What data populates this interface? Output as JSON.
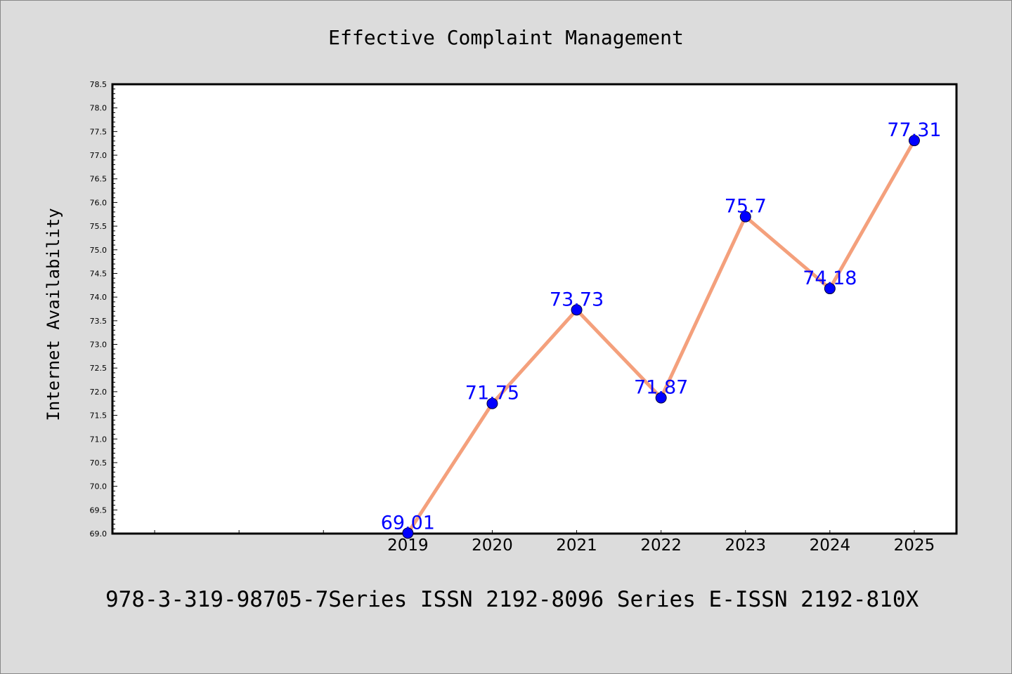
{
  "chart_data": {
    "type": "line",
    "title": "Effective Complaint Management",
    "xlabel": "",
    "ylabel": "Internet Availability",
    "categories": [
      "2019",
      "2020",
      "2021",
      "2022",
      "2023",
      "2024",
      "2025"
    ],
    "series": [
      {
        "values": [
          69.01,
          71.75,
          73.73,
          71.87,
          75.7,
          74.18,
          77.31
        ]
      }
    ],
    "data_labels": [
      "69.01",
      "71.75",
      "73.73",
      "71.87",
      "75.7",
      "74.18",
      "77.31"
    ],
    "ylim": [
      69.0,
      78.5
    ],
    "y_ticks": [
      "69.0",
      "69.5",
      "70.0",
      "70.5",
      "71.0",
      "71.5",
      "72.0",
      "72.5",
      "73.0",
      "73.5",
      "74.0",
      "74.5",
      "75.0",
      "75.5",
      "76.0",
      "76.5",
      "77.0",
      "77.5",
      "78.0",
      "78.5"
    ],
    "x_axis_slot_count": 10,
    "x_axis_first_labeled_slot": 3,
    "grid": false,
    "legend": "none",
    "colors": {
      "line": "#f4a07c",
      "marker": "#0000ff",
      "label": "#0000ff",
      "background": "#dcdcdc",
      "plot_background": "#ffffff"
    }
  },
  "footer": "978-3-319-98705-7Series ISSN 2192-8096 Series E-ISSN 2192-810X"
}
